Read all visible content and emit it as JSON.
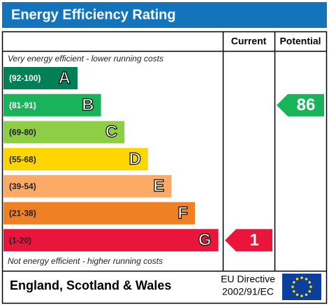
{
  "header": {
    "title": "Energy Efficiency Rating"
  },
  "columns": {
    "current": "Current",
    "potential": "Potential"
  },
  "top_note": "Very energy efficient - lower running costs",
  "bottom_note": "Not energy efficient - higher running costs",
  "bands": [
    {
      "range": "(92-100)",
      "letter": "A",
      "color": "#008054"
    },
    {
      "range": "(81-91)",
      "letter": "B",
      "color": "#19b459"
    },
    {
      "range": "(69-80)",
      "letter": "C",
      "color": "#8dce46"
    },
    {
      "range": "(55-68)",
      "letter": "D",
      "color": "#ffd500"
    },
    {
      "range": "(39-54)",
      "letter": "E",
      "color": "#fcaa65"
    },
    {
      "range": "(21-38)",
      "letter": "F",
      "color": "#ef8023"
    },
    {
      "range": "(1-20)",
      "letter": "G",
      "color": "#e9153b"
    }
  ],
  "current": 1,
  "potential": 86,
  "footer": {
    "region": "England, Scotland & Wales",
    "directive": [
      "EU Directive",
      "2002/91/EC"
    ]
  }
}
